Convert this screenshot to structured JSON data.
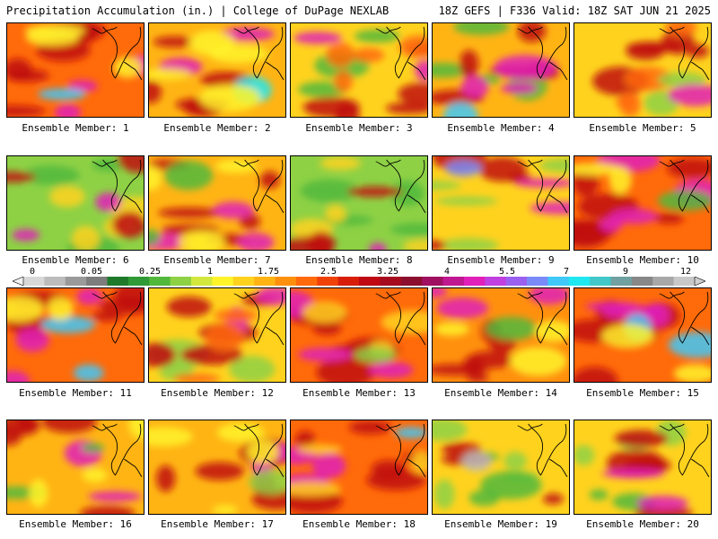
{
  "header": {
    "title": "Precipitation Accumulation (in.) | College of DuPage NEXLAB",
    "run_info": "18Z GEFS | F336 Valid: 18Z SAT JUN 21 2025"
  },
  "colorbar": {
    "tick_labels": [
      "0",
      "0.05",
      "0.25",
      "1",
      "1.75",
      "2.5",
      "3.25",
      "4",
      "5.5",
      "7",
      "9",
      "12"
    ],
    "colors": [
      "#d8d8d8",
      "#bcbcbc",
      "#9a9a9a",
      "#7d7d7d",
      "#1e7a2a",
      "#2f9a36",
      "#52b83c",
      "#8ed145",
      "#d2e83e",
      "#fff32a",
      "#ffd21e",
      "#ffb414",
      "#ff900e",
      "#ff6a0a",
      "#f04208",
      "#d81e08",
      "#c00812",
      "#a60a1e",
      "#8c0e2e",
      "#a01060",
      "#c01890",
      "#e020b8",
      "#c040e0",
      "#9a60f0",
      "#7a8af8",
      "#40c8f8",
      "#20e8f0",
      "#40c8c8",
      "#70a0a0",
      "#888888",
      "#a8a8a8",
      "#c8c8c8"
    ]
  },
  "panels": [
    {
      "label": "Ensemble Member: 1"
    },
    {
      "label": "Ensemble Member: 2"
    },
    {
      "label": "Ensemble Member: 3"
    },
    {
      "label": "Ensemble Member: 4"
    },
    {
      "label": "Ensemble Member: 5"
    },
    {
      "label": "Ensemble Member: 6"
    },
    {
      "label": "Ensemble Member: 7"
    },
    {
      "label": "Ensemble Member: 8"
    },
    {
      "label": "Ensemble Member: 9"
    },
    {
      "label": "Ensemble Member: 10"
    },
    {
      "label": "Ensemble Member: 11"
    },
    {
      "label": "Ensemble Member: 12"
    },
    {
      "label": "Ensemble Member: 13"
    },
    {
      "label": "Ensemble Member: 14"
    },
    {
      "label": "Ensemble Member: 15"
    },
    {
      "label": "Ensemble Member: 16"
    },
    {
      "label": "Ensemble Member: 17"
    },
    {
      "label": "Ensemble Member: 18"
    },
    {
      "label": "Ensemble Member: 19"
    },
    {
      "label": "Ensemble Member: 20"
    }
  ]
}
